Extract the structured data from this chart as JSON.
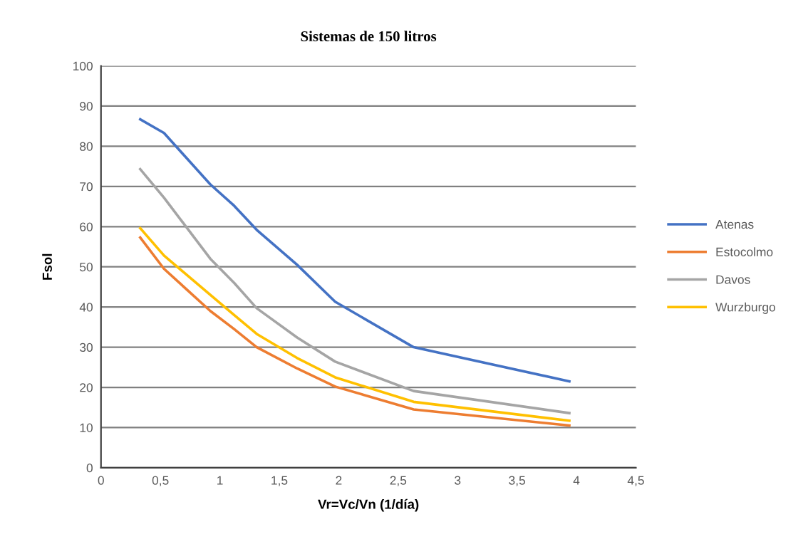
{
  "chart_data": {
    "type": "line",
    "title": "Sistemas de 150 litros",
    "xlabel": "Vr=Vc/Vn (1/día)",
    "ylabel": "Fsol",
    "x": [
      0.33,
      0.53,
      0.92,
      1.12,
      1.31,
      1.65,
      1.97,
      2.63,
      3.94
    ],
    "series": [
      {
        "name": "Atenas",
        "color": "#4472c4",
        "values": [
          86.7,
          83.3,
          70.5,
          65.2,
          59.2,
          50.5,
          41.3,
          30,
          21.5
        ]
      },
      {
        "name": "Estocolmo",
        "color": "#ed7d31",
        "values": [
          57.3,
          49.5,
          39,
          34.5,
          30,
          24.7,
          20.2,
          14.5,
          10.5
        ]
      },
      {
        "name": "Davos",
        "color": "#a5a5a5",
        "values": [
          74.3,
          67.2,
          52,
          46,
          39.7,
          32.4,
          26.4,
          19.1,
          13.6
        ]
      },
      {
        "name": "Wurzburgo",
        "color": "#ffc000",
        "values": [
          59.6,
          52.8,
          43,
          38,
          33.3,
          27.3,
          22.5,
          16.4,
          11.7
        ]
      }
    ],
    "xlim": [
      0,
      4.5
    ],
    "xticks": [
      0,
      {
        "value": 0.5,
        "label": "0,5"
      },
      1,
      {
        "value": 1.5,
        "label": "1,5"
      },
      2,
      {
        "value": 2.5,
        "label": "2,5"
      },
      3,
      {
        "value": 3.5,
        "label": "3,5"
      },
      4,
      {
        "value": 4.5,
        "label": "4,5"
      }
    ],
    "ylim": [
      0,
      100
    ],
    "yticks": [
      0,
      10,
      20,
      30,
      40,
      50,
      60,
      70,
      80,
      90,
      100
    ],
    "grid": "y",
    "legend": "right",
    "line_style": "solid",
    "marker": "none"
  }
}
